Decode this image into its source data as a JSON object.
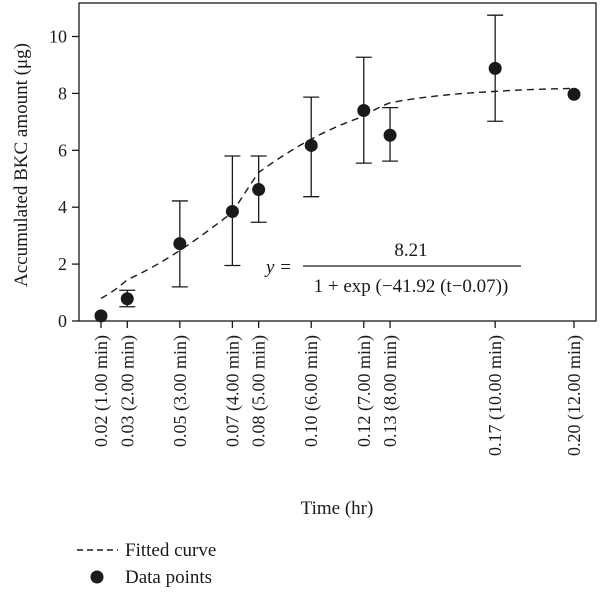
{
  "chart_data": {
    "type": "scatter",
    "title": "",
    "xlabel": "Time (hr)",
    "ylabel": "Accumulated BKC amount (μg)",
    "ylim": [
      0,
      11.3
    ],
    "yticks": [
      0,
      2,
      4,
      6,
      8,
      10
    ],
    "grid": false,
    "legend": {
      "placement": "bottom-left",
      "entries": [
        {
          "label": "Fitted curve",
          "style": "dashed-line"
        },
        {
          "label": "Data points",
          "style": "filled-circle"
        }
      ]
    },
    "points": [
      {
        "x": 0.02,
        "label": "0.02 (1.00 min)",
        "y": 0.18,
        "err_low": 0.18,
        "err_high": 0.18
      },
      {
        "x": 0.03,
        "label": "0.03 (2.00 min)",
        "y": 0.78,
        "err_low": 0.5,
        "err_high": 1.08
      },
      {
        "x": 0.05,
        "label": "0.05 (3.00 min)",
        "y": 2.72,
        "err_low": 1.2,
        "err_high": 4.22
      },
      {
        "x": 0.07,
        "label": "0.07 (4.00 min)",
        "y": 3.85,
        "err_low": 1.95,
        "err_high": 5.8
      },
      {
        "x": 0.08,
        "label": "0.08 (5.00 min)",
        "y": 4.62,
        "err_low": 3.47,
        "err_high": 5.8
      },
      {
        "x": 0.1,
        "label": "0.10 (6.00 min)",
        "y": 6.17,
        "err_low": 4.37,
        "err_high": 7.87
      },
      {
        "x": 0.12,
        "label": "0.12 (7.00 min)",
        "y": 7.4,
        "err_low": 5.55,
        "err_high": 9.27
      },
      {
        "x": 0.13,
        "label": "0.13 (8.00 min)",
        "y": 6.53,
        "err_low": 5.62,
        "err_high": 7.5
      },
      {
        "x": 0.17,
        "label": "0.17 (10.00 min)",
        "y": 8.88,
        "err_low": 7.02,
        "err_high": 10.75
      },
      {
        "x": 0.2,
        "label": "0.20 (12.00 min)",
        "y": 7.97,
        "err_low": 7.97,
        "err_high": 7.97
      }
    ],
    "fitted_curve": {
      "A": 8.21,
      "k": 41.92,
      "t0": 0.07,
      "x_from": 0.02,
      "x_to": 0.2
    },
    "equation": {
      "lhs": "y =",
      "numerator": "8.21",
      "denominator": "1 + exp (−41.92 (t−0.07))"
    }
  }
}
